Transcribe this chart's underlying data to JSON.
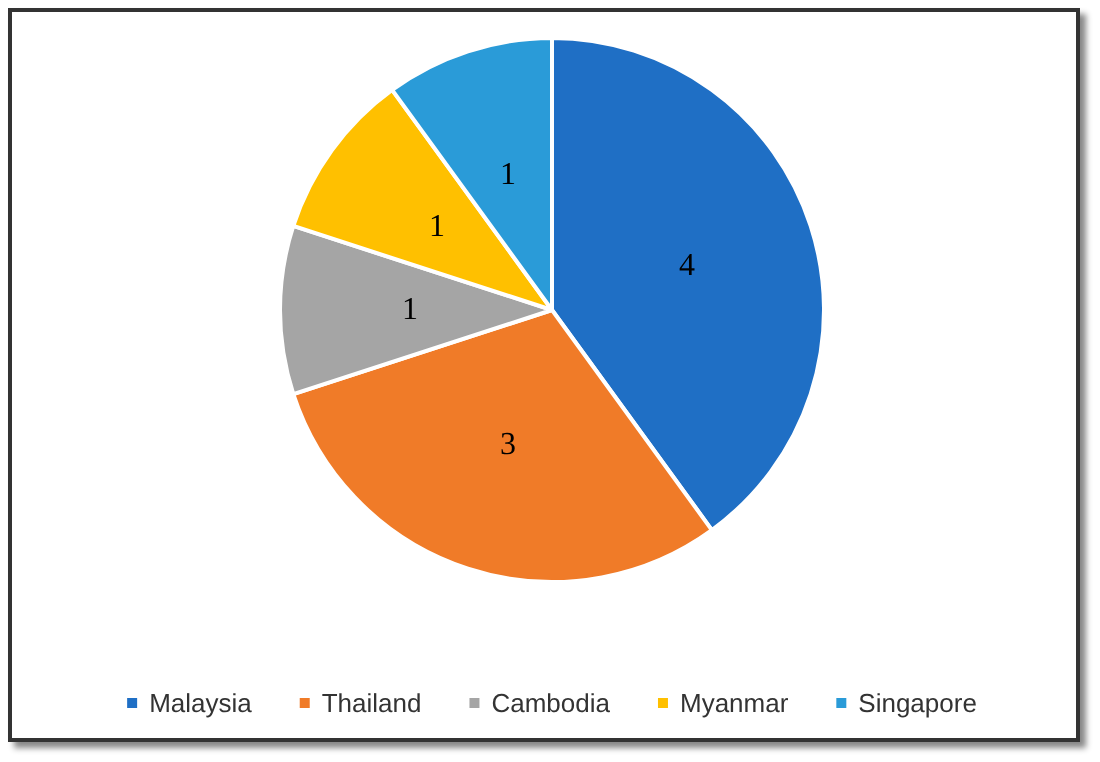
{
  "chart_data": {
    "type": "pie",
    "categories": [
      "Malaysia",
      "Thailand",
      "Cambodia",
      "Myanmar",
      "Singapore"
    ],
    "values": [
      4,
      3,
      1,
      1,
      1
    ],
    "colors": [
      "#1f6fc5",
      "#f07b28",
      "#a5a5a5",
      "#ffc000",
      "#2a9bd8"
    ],
    "data_labels": true,
    "legend": "bottom"
  }
}
